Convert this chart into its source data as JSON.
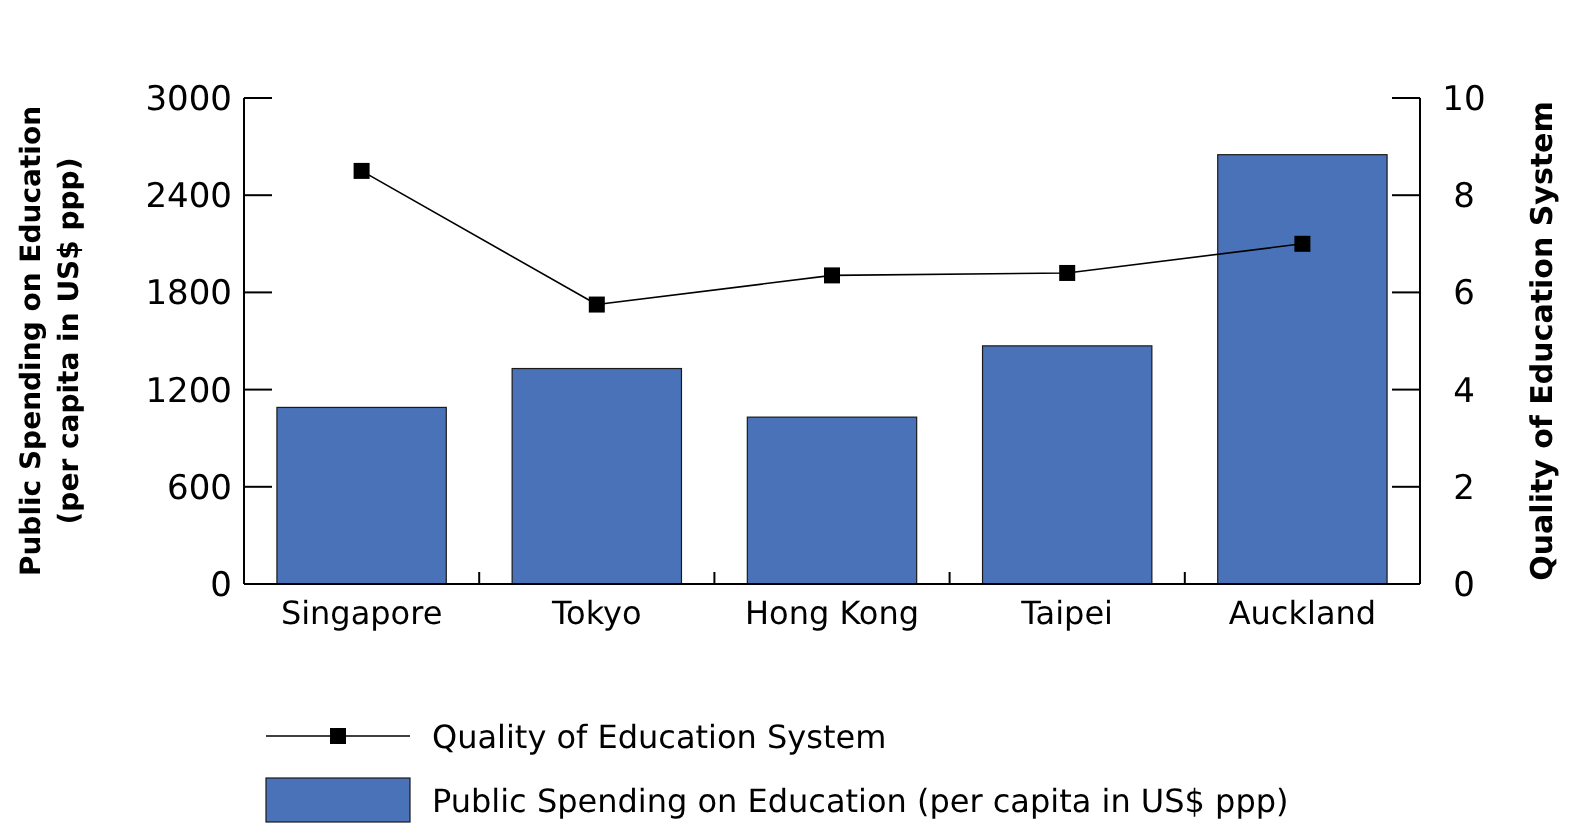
{
  "chart_data": {
    "type": "bar",
    "categories": [
      "Singapore",
      "Tokyo",
      "Hong Kong",
      "Taipei",
      "Auckland"
    ],
    "ylabel": "Public Spending on Education\n(per capita in US$ ppp)",
    "y2label": "Quality of Education System",
    "ylim": [
      0,
      3000
    ],
    "yticks": [
      0,
      600,
      1200,
      1800,
      2400,
      3000
    ],
    "y2lim": [
      0,
      10
    ],
    "y2ticks": [
      0,
      2,
      4,
      6,
      8,
      10
    ],
    "grid": false,
    "legend": "bottom",
    "marker": "square",
    "line_style": "solid",
    "series": [
      {
        "name": "Quality of Education System",
        "type": "line",
        "axis": "y2",
        "color": "#000000",
        "values": [
          8.5,
          5.75,
          6.35,
          6.4,
          7.0
        ]
      },
      {
        "name": "Public Spending on Education (per capita in US$ ppp)",
        "color": "#4a72b8",
        "values": [
          1090,
          1330,
          1030,
          1470,
          2650
        ]
      }
    ]
  }
}
